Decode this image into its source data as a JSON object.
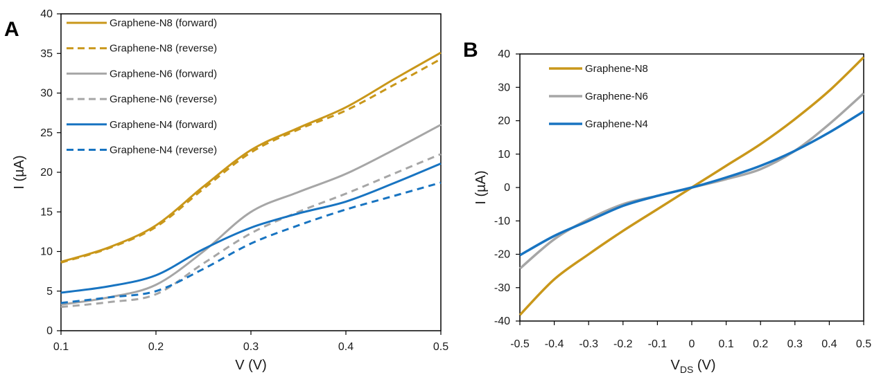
{
  "chart_data": [
    {
      "panel": "A",
      "type": "line",
      "xlabel": "V (V)",
      "ylabel": "I (µA)",
      "xlim": [
        0.1,
        0.5
      ],
      "ylim": [
        0,
        40
      ],
      "xticks": [
        "0.1",
        "0.2",
        "0.3",
        "0.4",
        "0.5"
      ],
      "yticks": [
        "0",
        "5",
        "10",
        "15",
        "20",
        "25",
        "30",
        "35",
        "40"
      ],
      "grid": false,
      "legend_position": "top-left",
      "series": [
        {
          "name": "Graphene-N8 (forward)",
          "color": "#C9971A",
          "dash": "solid",
          "x": [
            0.1,
            0.15,
            0.2,
            0.25,
            0.3,
            0.35,
            0.4,
            0.45,
            0.5
          ],
          "y": [
            8.7,
            10.5,
            13.3,
            18.2,
            22.8,
            25.6,
            28.2,
            31.7,
            35.1
          ]
        },
        {
          "name": "Graphene-N8 (reverse)",
          "color": "#C9971A",
          "dash": "dashed",
          "x": [
            0.1,
            0.15,
            0.2,
            0.25,
            0.3,
            0.35,
            0.4,
            0.45,
            0.5
          ],
          "y": [
            8.6,
            10.4,
            13.1,
            17.9,
            22.5,
            25.4,
            27.8,
            31.0,
            34.3
          ]
        },
        {
          "name": "Graphene-N6 (forward)",
          "color": "#A6A6A6",
          "dash": "solid",
          "x": [
            0.1,
            0.15,
            0.2,
            0.25,
            0.3,
            0.35,
            0.4,
            0.45,
            0.5
          ],
          "y": [
            3.3,
            4.2,
            5.8,
            10.0,
            15.0,
            17.5,
            19.8,
            22.8,
            26.0
          ]
        },
        {
          "name": "Graphene-N6 (reverse)",
          "color": "#A6A6A6",
          "dash": "dashed",
          "x": [
            0.1,
            0.15,
            0.2,
            0.25,
            0.3,
            0.35,
            0.4,
            0.45,
            0.5
          ],
          "y": [
            3.0,
            3.6,
            4.6,
            8.5,
            12.3,
            15.0,
            17.3,
            19.8,
            22.3
          ]
        },
        {
          "name": "Graphene-N4 (forward)",
          "color": "#1874C1",
          "dash": "solid",
          "x": [
            0.1,
            0.15,
            0.2,
            0.25,
            0.3,
            0.35,
            0.4,
            0.45,
            0.5
          ],
          "y": [
            4.8,
            5.6,
            7.0,
            10.3,
            13.0,
            14.8,
            16.3,
            18.6,
            21.1
          ]
        },
        {
          "name": "Graphene-N4 (reverse)",
          "color": "#1874C1",
          "dash": "dashed",
          "x": [
            0.1,
            0.15,
            0.2,
            0.25,
            0.3,
            0.35,
            0.4,
            0.45,
            0.5
          ],
          "y": [
            3.5,
            4.2,
            5.0,
            7.8,
            11.0,
            13.3,
            15.3,
            17.0,
            18.7
          ]
        }
      ]
    },
    {
      "panel": "B",
      "type": "line",
      "xlabel": "V",
      "xlabel_sub": "DS",
      "xlabel_unit": " (V)",
      "ylabel": "I (µA)",
      "xlim": [
        -0.5,
        0.5
      ],
      "ylim": [
        -40,
        40
      ],
      "xticks": [
        "-0.5",
        "-0.4",
        "-0.3",
        "-0.2",
        "-0.1",
        "0",
        "0.1",
        "0.2",
        "0.3",
        "0.4",
        "0.5"
      ],
      "yticks": [
        "-40",
        "-30",
        "-20",
        "-10",
        "0",
        "10",
        "20",
        "30",
        "40"
      ],
      "grid": false,
      "legend_position": "top-left",
      "series": [
        {
          "name": "Graphene-N8",
          "color": "#C9971A",
          "dash": "solid",
          "x": [
            -0.5,
            -0.4,
            -0.3,
            -0.2,
            -0.1,
            0,
            0.1,
            0.2,
            0.3,
            0.4,
            0.5
          ],
          "y": [
            -38.2,
            -27.5,
            -20.0,
            -13.0,
            -6.5,
            0,
            6.5,
            13.0,
            20.5,
            29.0,
            39.0
          ]
        },
        {
          "name": "Graphene-N6",
          "color": "#A6A6A6",
          "dash": "solid",
          "x": [
            -0.5,
            -0.4,
            -0.3,
            -0.2,
            -0.1,
            0,
            0.1,
            0.2,
            0.3,
            0.4,
            0.5
          ],
          "y": [
            -24.3,
            -15.5,
            -9.5,
            -5.0,
            -2.5,
            0,
            2.5,
            5.5,
            11.0,
            19.0,
            28.2
          ]
        },
        {
          "name": "Graphene-N4",
          "color": "#1874C1",
          "dash": "solid",
          "x": [
            -0.5,
            -0.4,
            -0.3,
            -0.2,
            -0.1,
            0,
            0.1,
            0.2,
            0.3,
            0.4,
            0.5
          ],
          "y": [
            -20.3,
            -14.5,
            -10.0,
            -5.5,
            -2.5,
            0,
            3.0,
            6.5,
            11.0,
            16.5,
            22.8
          ]
        }
      ]
    }
  ]
}
